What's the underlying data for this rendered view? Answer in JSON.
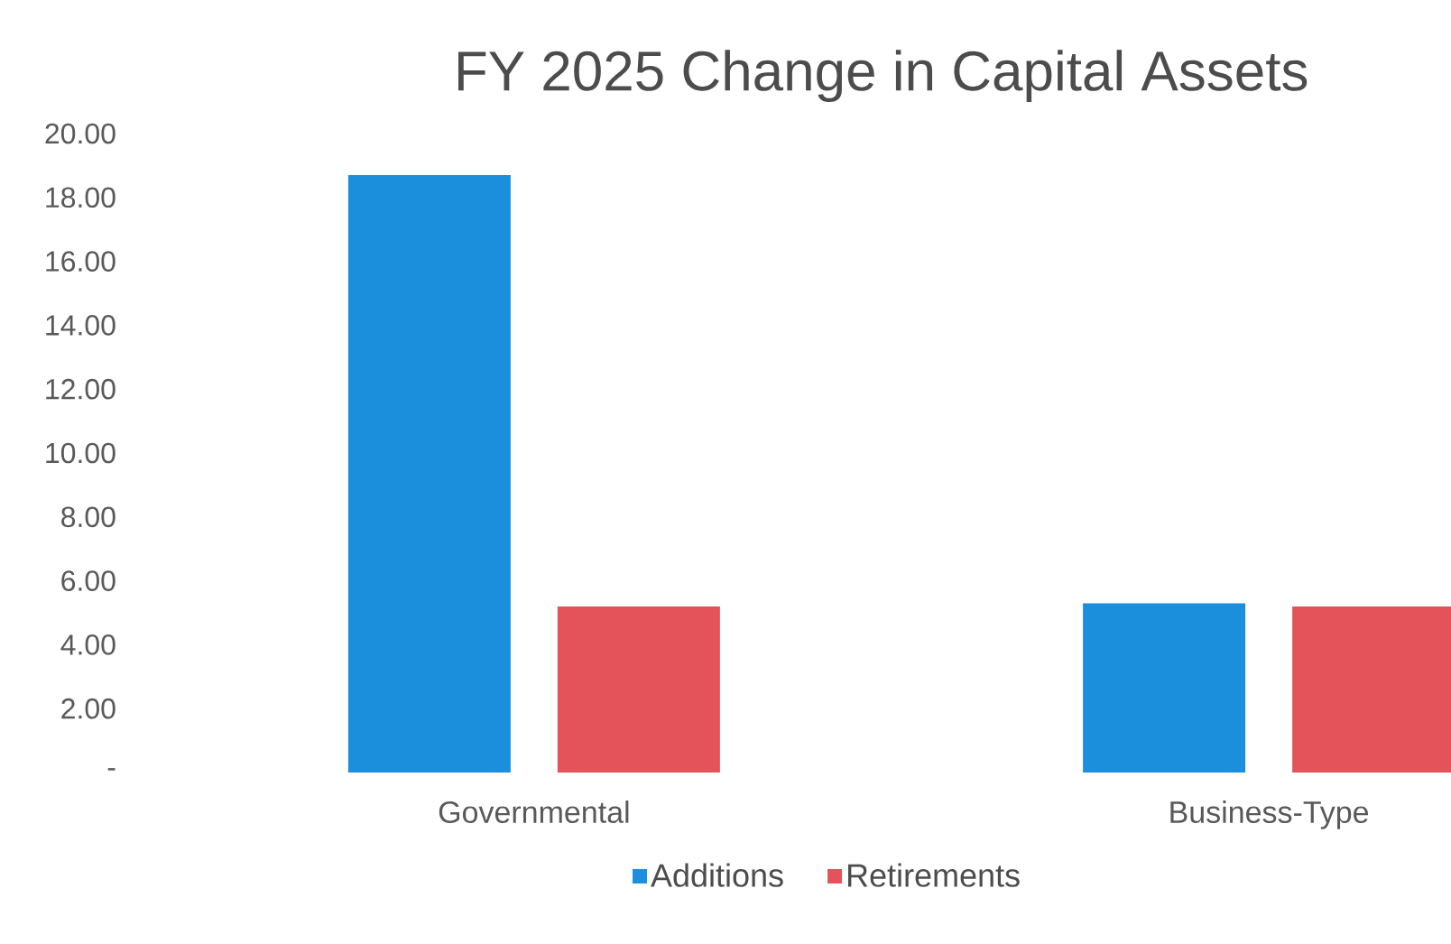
{
  "chart_data": {
    "type": "bar",
    "title": "FY 2025 Change in Capital Assets",
    "categories": [
      "Governmental",
      "Business-Type"
    ],
    "series": [
      {
        "name": "Additions",
        "color": "#1b8fdc",
        "values": [
          18.7,
          5.3
        ]
      },
      {
        "name": "Retirements",
        "color": "#e5535a",
        "values": [
          5.2,
          5.2
        ]
      }
    ],
    "ylim": [
      0,
      20
    ],
    "yticks": [
      {
        "value": 0,
        "label": "-"
      },
      {
        "value": 2,
        "label": "2.00"
      },
      {
        "value": 4,
        "label": "4.00"
      },
      {
        "value": 6,
        "label": "6.00"
      },
      {
        "value": 8,
        "label": "8.00"
      },
      {
        "value": 10,
        "label": "10.00"
      },
      {
        "value": 12,
        "label": "12.00"
      },
      {
        "value": 14,
        "label": "14.00"
      },
      {
        "value": 16,
        "label": "16.00"
      },
      {
        "value": 18,
        "label": "18.00"
      },
      {
        "value": 20,
        "label": "20.00"
      }
    ],
    "legend": "bottom"
  }
}
